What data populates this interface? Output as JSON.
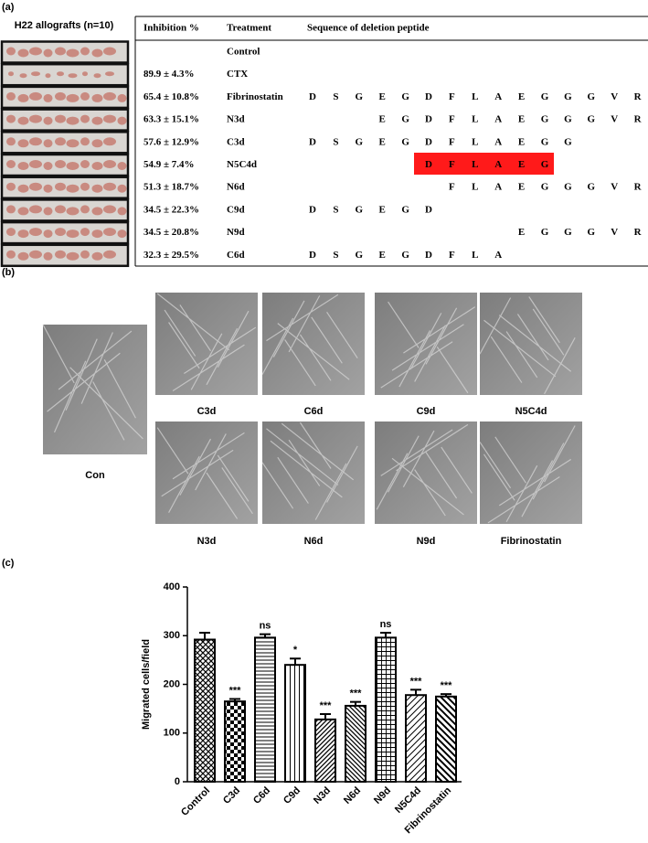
{
  "panel_labels": [
    "(a)",
    "(b)",
    "(c)"
  ],
  "allograft_title": "H22 allografts (n=10)",
  "table": {
    "headers": [
      "Inhibition %",
      "Treatment",
      "Sequence of deletion peptide"
    ],
    "rows": [
      {
        "inhibition": null,
        "treatment": "Control",
        "sequence": [
          null,
          null,
          null,
          null,
          null,
          null,
          null,
          null,
          null,
          null,
          null,
          null,
          null,
          null,
          null
        ]
      },
      {
        "inhibition": "89.9 ± 4.3%",
        "treatment": "CTX",
        "sequence": [
          null,
          null,
          null,
          null,
          null,
          null,
          null,
          null,
          null,
          null,
          null,
          null,
          null,
          null,
          null
        ]
      },
      {
        "inhibition": "65.4 ± 10.8%",
        "treatment": "Fibrinostatin",
        "sequence": [
          "D",
          "S",
          "G",
          "E",
          "G",
          "D",
          "F",
          "L",
          "A",
          "E",
          "G",
          "G",
          "G",
          "V",
          "R"
        ]
      },
      {
        "inhibition": "63.3 ± 15.1%",
        "treatment": "N3d",
        "sequence": [
          null,
          null,
          null,
          "E",
          "G",
          "D",
          "F",
          "L",
          "A",
          "E",
          "G",
          "G",
          "G",
          "V",
          "R"
        ]
      },
      {
        "inhibition": "57.6 ± 12.9%",
        "treatment": "C3d",
        "sequence": [
          "D",
          "S",
          "G",
          "E",
          "G",
          "D",
          "F",
          "L",
          "A",
          "E",
          "G",
          "G",
          null,
          null,
          null
        ]
      },
      {
        "inhibition": "54.9 ± 7.4%",
        "treatment": "N5C4d",
        "sequence": [
          null,
          null,
          null,
          null,
          null,
          "D",
          "F",
          "L",
          "A",
          "E",
          "G",
          null,
          null,
          null,
          null
        ]
      },
      {
        "inhibition": "51.3 ± 18.7%",
        "treatment": "N6d",
        "sequence": [
          null,
          null,
          null,
          null,
          null,
          null,
          "F",
          "L",
          "A",
          "E",
          "G",
          "G",
          "G",
          "V",
          "R"
        ]
      },
      {
        "inhibition": "34.5 ± 22.3%",
        "treatment": "C9d",
        "sequence": [
          "D",
          "S",
          "G",
          "E",
          "G",
          "D",
          null,
          null,
          null,
          null,
          null,
          null,
          null,
          null,
          null
        ]
      },
      {
        "inhibition": "34.5 ± 20.8%",
        "treatment": "N9d",
        "sequence": [
          null,
          null,
          null,
          null,
          null,
          null,
          null,
          null,
          null,
          "E",
          "G",
          "G",
          "G",
          "V",
          "R"
        ]
      },
      {
        "inhibition": "32.3 ± 29.5%",
        "treatment": "C6d",
        "sequence": [
          "D",
          "S",
          "G",
          "E",
          "G",
          "D",
          "F",
          "L",
          "A",
          null,
          null,
          null,
          null,
          null,
          null
        ]
      }
    ]
  },
  "micrographs": [
    "Con",
    "C3d",
    "C6d",
    "C9d",
    "N5C4d",
    "N3d",
    "N6d",
    "N9d",
    "Fibrinostatin"
  ],
  "chart_data": {
    "type": "bar",
    "y_label": "Migrated cells/field",
    "categories": [
      "Control",
      "C3d",
      "C6d",
      "C9d",
      "N3d",
      "N6d",
      "N9d",
      "N5C4d",
      "Fibrinostatin"
    ],
    "values": [
      292,
      165,
      296,
      240,
      128,
      156,
      296,
      178,
      175
    ],
    "errors": [
      14,
      5,
      7,
      13,
      11,
      8,
      10,
      11,
      5
    ],
    "annotations": [
      null,
      "***",
      "ns",
      "*",
      "***",
      "***",
      "ns",
      "***",
      "***"
    ],
    "ylim": [
      0,
      400
    ],
    "yticks": [
      0,
      100,
      200,
      300,
      400
    ],
    "color": "#000000"
  }
}
